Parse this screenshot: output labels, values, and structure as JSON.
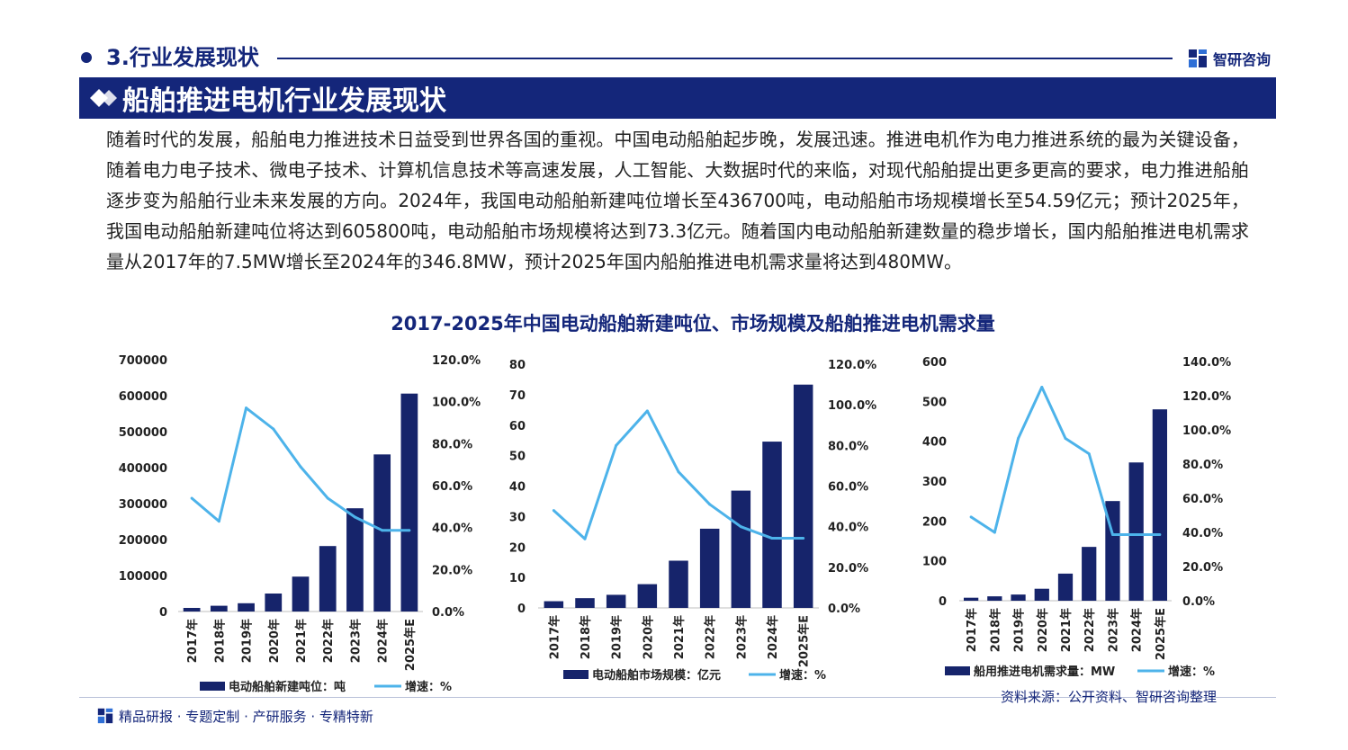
{
  "header": {
    "section_title": "3.行业发展现状",
    "brand_name": "智研咨询",
    "banner_title": "船舶推进电机行业发展现状"
  },
  "intro_text": "随着时代的发展，船舶电力推进技术日益受到世界各国的重视。中国电动船舶起步晚，发展迅速。推进电机作为电力推进系统的最为关键设备，随着电力电子技术、微电子技术、计算机信息技术等高速发展，人工智能、大数据时代的来临，对现代船舶提出更多更高的要求，电力推进船舶逐步变为船舶行业未来发展的方向。2024年，我国电动船舶新建吨位增长至436700吨，电动船舶市场规模增长至54.59亿元；预计2025年，我国电动船舶新建吨位将达到605800吨，电动船舶市场规模将达到73.3亿元。随着国内电动船舶新建数量的稳步增长，国内船舶推进电机需求量从2017年的7.5MW增长至2024年的346.8MW，预计2025年国内船舶推进电机需求量将达到480MW。",
  "figure_title": "2017-2025年中国电动船舶新建吨位、市场规模及船舶推进电机需求量",
  "footer": {
    "tagline": "精品研报 · 专题定制 · 产研服务 · 专精特新",
    "source": "资料来源：公开资料、智研咨询整理"
  },
  "colors": {
    "navy": "#14267a",
    "bar": "#16246b",
    "line": "#4db3ea",
    "axis_text": "#222222"
  },
  "chart_data": [
    {
      "type": "bar+line",
      "categories": [
        "2017年",
        "2018年",
        "2019年",
        "2020年",
        "2021年",
        "2022年",
        "2023年",
        "2024年",
        "2025年E"
      ],
      "series": [
        {
          "name": "电动船舶新建吨位：吨",
          "type": "bar",
          "axis": "left",
          "values": [
            10000,
            16000,
            23000,
            50000,
            97000,
            182000,
            287000,
            436700,
            605800
          ]
        },
        {
          "name": "增速：%",
          "type": "line",
          "axis": "right",
          "values": [
            54,
            43,
            97,
            87,
            69,
            54,
            45,
            38.7,
            38.7
          ]
        }
      ],
      "y_left": {
        "ylim": [
          0,
          700000
        ],
        "ticks": [
          "0",
          "100000",
          "200000",
          "300000",
          "400000",
          "500000",
          "600000",
          "700000"
        ]
      },
      "y_right": {
        "ylim": [
          0,
          120
        ],
        "ticks": [
          "0.0%",
          "20.0%",
          "40.0%",
          "60.0%",
          "80.0%",
          "100.0%",
          "120.0%"
        ]
      },
      "legend_position": "bottom"
    },
    {
      "type": "bar+line",
      "categories": [
        "2017年",
        "2018年",
        "2019年",
        "2020年",
        "2021年",
        "2022年",
        "2023年",
        "2024年",
        "2025年E"
      ],
      "series": [
        {
          "name": "电动船舶市场规模：亿元",
          "type": "bar",
          "axis": "left",
          "values": [
            2.2,
            3.2,
            4.3,
            7.8,
            15.5,
            26,
            38.5,
            54.59,
            73.3
          ]
        },
        {
          "name": "增速：%",
          "type": "line",
          "axis": "right",
          "values": [
            48,
            34,
            80,
            97,
            67,
            51,
            40,
            34.3,
            34.3
          ]
        }
      ],
      "y_left": {
        "ylim": [
          0,
          80
        ],
        "ticks": [
          "0",
          "10",
          "20",
          "30",
          "40",
          "50",
          "60",
          "70",
          "80"
        ]
      },
      "y_right": {
        "ylim": [
          0,
          120
        ],
        "ticks": [
          "0.0%",
          "20.0%",
          "40.0%",
          "60.0%",
          "80.0%",
          "100.0%",
          "120.0%"
        ]
      },
      "legend_position": "bottom"
    },
    {
      "type": "bar+line",
      "categories": [
        "2017年",
        "2018年",
        "2019年",
        "2020年",
        "2021年",
        "2022年",
        "2023年",
        "2024年",
        "2025年E"
      ],
      "series": [
        {
          "name": "船用推进电机需求量：MW",
          "type": "bar",
          "axis": "left",
          "values": [
            7.5,
            11,
            15.5,
            30,
            68,
            135,
            250,
            346.8,
            480
          ]
        },
        {
          "name": "增速：%",
          "type": "line",
          "axis": "right",
          "values": [
            49,
            40,
            95,
            125,
            95,
            86,
            38.7,
            38.7,
            38.7
          ]
        }
      ],
      "y_left": {
        "ylim": [
          0,
          600
        ],
        "ticks": [
          "0",
          "100",
          "200",
          "300",
          "400",
          "500",
          "600"
        ]
      },
      "y_right": {
        "ylim": [
          0,
          140
        ],
        "ticks": [
          "0.0%",
          "20.0%",
          "40.0%",
          "60.0%",
          "80.0%",
          "100.0%",
          "120.0%",
          "140.0%"
        ]
      },
      "legend_position": "bottom"
    }
  ]
}
